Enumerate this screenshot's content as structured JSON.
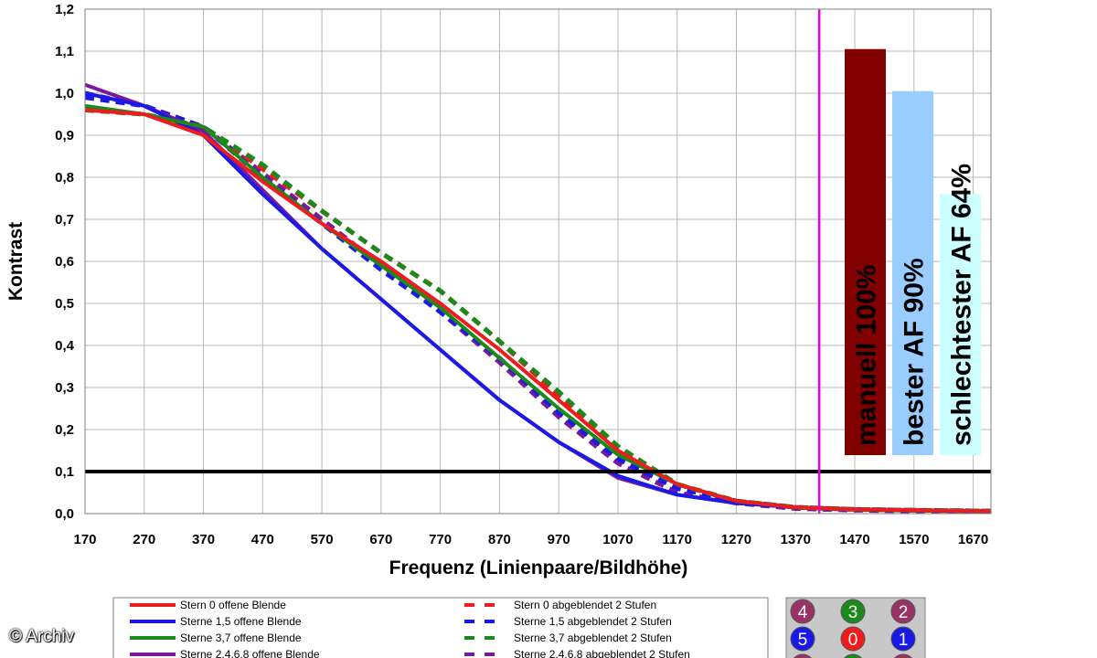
{
  "chart_data": {
    "type": "line",
    "xlabel": "Frequenz (Linienpaare/Bildhöhe)",
    "ylabel": "Kontrast",
    "xlim": [
      170,
      1700
    ],
    "ylim": [
      0.0,
      1.2
    ],
    "x_ticks": [
      "170",
      "270",
      "370",
      "470",
      "570",
      "670",
      "770",
      "870",
      "970",
      "1070",
      "1170",
      "1270",
      "1370",
      "1470",
      "1570",
      "1670"
    ],
    "y_ticks": [
      "0,0",
      "0,1",
      "0,2",
      "0,3",
      "0,4",
      "0,5",
      "0,6",
      "0,7",
      "0,8",
      "0,9",
      "1,0",
      "1,1",
      "1,2"
    ],
    "grid": true,
    "threshold_line": 0.1,
    "marker_line_x": 1410,
    "series": [
      {
        "name": "Stern 0 offene Blende",
        "color": "#ee1c1c",
        "dash": false,
        "x": [
          170,
          270,
          370,
          470,
          570,
          670,
          770,
          870,
          970,
          1070,
          1170,
          1270,
          1370,
          1470,
          1570,
          1700
        ],
        "y": [
          0.96,
          0.95,
          0.9,
          0.79,
          0.69,
          0.6,
          0.5,
          0.39,
          0.27,
          0.15,
          0.07,
          0.03,
          0.015,
          0.01,
          0.008,
          0.006
        ]
      },
      {
        "name": "Sterne 1,5 offene Blende",
        "color": "#1a1ae6",
        "dash": false,
        "x": [
          170,
          270,
          370,
          470,
          570,
          670,
          770,
          870,
          970,
          1070,
          1170,
          1270,
          1370,
          1470,
          1570,
          1700
        ],
        "y": [
          1.0,
          0.97,
          0.9,
          0.76,
          0.63,
          0.51,
          0.39,
          0.27,
          0.17,
          0.09,
          0.045,
          0.025,
          0.015,
          0.01,
          0.008,
          0.006
        ]
      },
      {
        "name": "Sterne 3,7 offene Blende",
        "color": "#1b8a1b",
        "dash": false,
        "x": [
          170,
          270,
          370,
          470,
          570,
          670,
          770,
          870,
          970,
          1070,
          1170,
          1270,
          1370,
          1470,
          1570,
          1700
        ],
        "y": [
          0.97,
          0.95,
          0.92,
          0.8,
          0.69,
          0.59,
          0.49,
          0.37,
          0.25,
          0.14,
          0.07,
          0.03,
          0.015,
          0.01,
          0.008,
          0.006
        ]
      },
      {
        "name": "Sterne 2,4,6,8 offene Blende",
        "color": "#7a1a9a",
        "dash": false,
        "x": [
          170,
          270,
          370,
          470,
          570,
          670,
          770,
          870,
          970,
          1070,
          1170,
          1270,
          1370,
          1470,
          1570,
          1700
        ],
        "y": [
          1.02,
          0.97,
          0.91,
          0.77,
          0.63,
          0.51,
          0.39,
          0.27,
          0.17,
          0.085,
          0.045,
          0.025,
          0.015,
          0.01,
          0.008,
          0.006
        ]
      },
      {
        "name": "Stern 0 abgeblendet 2 Stufen",
        "color": "#ee1c1c",
        "dash": true,
        "x": [
          170,
          270,
          370,
          470,
          570,
          670,
          770,
          870,
          970,
          1070,
          1170,
          1270,
          1370,
          1470,
          1570,
          1700
        ],
        "y": [
          0.96,
          0.95,
          0.92,
          0.82,
          0.72,
          0.62,
          0.53,
          0.41,
          0.28,
          0.16,
          0.07,
          0.03,
          0.015,
          0.01,
          0.008,
          0.006
        ]
      },
      {
        "name": "Sterne 1,5 abgeblendet 2 Stufen",
        "color": "#1a1ae6",
        "dash": true,
        "x": [
          170,
          270,
          370,
          470,
          570,
          670,
          770,
          870,
          970,
          1070,
          1170,
          1270,
          1370,
          1470,
          1570,
          1700
        ],
        "y": [
          0.99,
          0.97,
          0.92,
          0.8,
          0.69,
          0.58,
          0.48,
          0.37,
          0.24,
          0.13,
          0.06,
          0.03,
          0.015,
          0.01,
          0.008,
          0.006
        ]
      },
      {
        "name": "Sterne 3,7 abgeblendet 2 Stufen",
        "color": "#1b8a1b",
        "dash": true,
        "x": [
          170,
          270,
          370,
          470,
          570,
          670,
          770,
          870,
          970,
          1070,
          1170,
          1270,
          1370,
          1470,
          1570,
          1700
        ],
        "y": [
          0.96,
          0.95,
          0.92,
          0.83,
          0.72,
          0.62,
          0.53,
          0.41,
          0.29,
          0.16,
          0.07,
          0.03,
          0.015,
          0.01,
          0.008,
          0.006
        ]
      },
      {
        "name": "Sterne 2,4,6,8 abgeblendet 2 Stufen",
        "color": "#7a1a9a",
        "dash": true,
        "x": [
          170,
          270,
          370,
          470,
          570,
          670,
          770,
          870,
          970,
          1070,
          1170,
          1270,
          1370,
          1470,
          1570,
          1700
        ],
        "y": [
          1.0,
          0.97,
          0.92,
          0.81,
          0.7,
          0.59,
          0.48,
          0.36,
          0.23,
          0.12,
          0.05,
          0.025,
          0.012,
          0.008,
          0.006,
          0.005
        ]
      }
    ],
    "bars": [
      {
        "label": "manuell 100%",
        "value": 1.105,
        "color": "#800000"
      },
      {
        "label": "bester AF 90%",
        "value": 1.005,
        "color": "#99ccff"
      },
      {
        "label": "schlechtester AF 64%",
        "value": 0.76,
        "color": "#ccffff"
      }
    ],
    "star_badges": [
      {
        "label": "4",
        "color": "#993366"
      },
      {
        "label": "3",
        "color": "#1b8a1b"
      },
      {
        "label": "2",
        "color": "#993366"
      },
      {
        "label": "5",
        "color": "#1a1ae6"
      },
      {
        "label": "0",
        "color": "#ee1c1c"
      },
      {
        "label": "1",
        "color": "#1a1ae6"
      }
    ]
  },
  "copyright": "© Archiv"
}
